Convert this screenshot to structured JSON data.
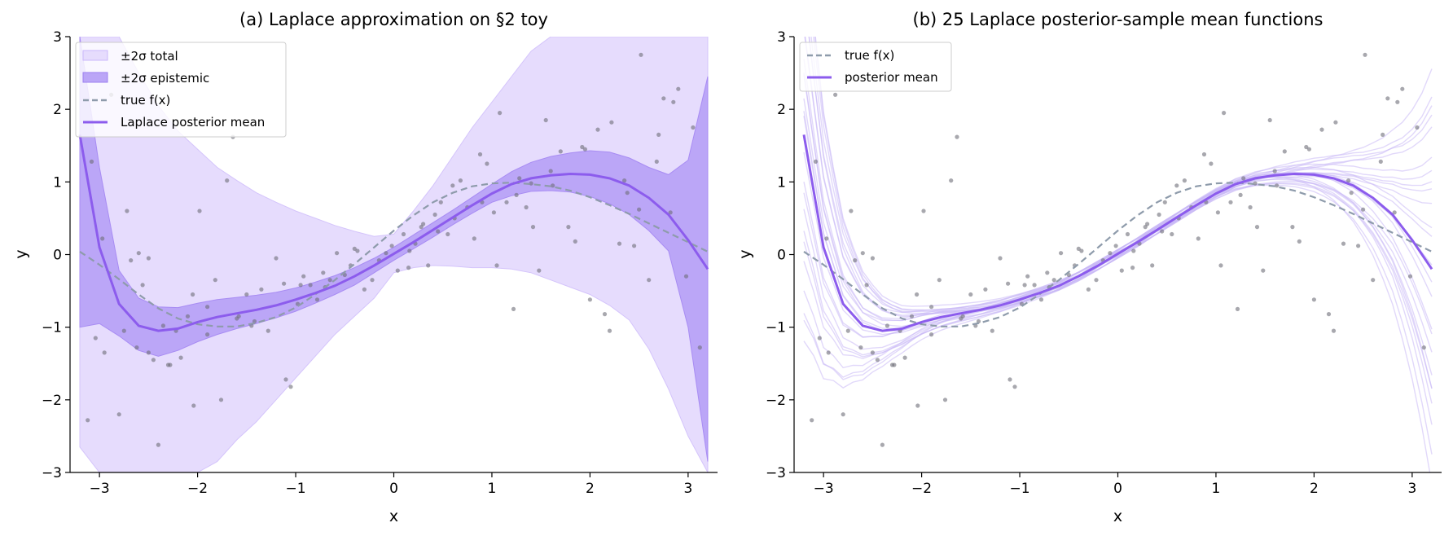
{
  "colors": {
    "mean": "#8c5ced",
    "band_total": "#e6dcfd",
    "band_epistemic": "#bba6f7",
    "true_curve": "#8e9bab",
    "points": "#6e6e78",
    "samples": "#c9b8f6"
  },
  "chart_data": [
    {
      "type": "line",
      "title": "(a) Laplace approximation on §2 toy",
      "xlabel": "x",
      "ylabel": "y",
      "xlim": [
        -3.3,
        3.3
      ],
      "ylim": [
        -3,
        3
      ],
      "xticks": [
        -3,
        -2,
        -1,
        0,
        1,
        2,
        3
      ],
      "yticks": [
        -3,
        -2,
        -1,
        0,
        1,
        2,
        3
      ],
      "xtick_labels": [
        "−3",
        "−2",
        "−1",
        "0",
        "1",
        "2",
        "3"
      ],
      "ytick_labels": [
        "−3",
        "−2",
        "−1",
        "0",
        "1",
        "2",
        "3"
      ],
      "grid": false,
      "legend_position": "top-left",
      "legend": [
        {
          "label": "±2σ total",
          "kind": "band",
          "color": "#e6dcfd"
        },
        {
          "label": "±2σ epistemic",
          "kind": "band",
          "color": "#bba6f7"
        },
        {
          "label": "true f(x)",
          "kind": "dash",
          "color": "#8e9bab"
        },
        {
          "label": "Laplace posterior mean",
          "kind": "line",
          "color": "#8c5ced"
        }
      ],
      "x": [
        -3.2,
        -3.0,
        -2.8,
        -2.6,
        -2.4,
        -2.2,
        -2.0,
        -1.8,
        -1.6,
        -1.4,
        -1.2,
        -1.0,
        -0.8,
        -0.6,
        -0.4,
        -0.2,
        0.0,
        0.2,
        0.4,
        0.6,
        0.8,
        1.0,
        1.2,
        1.4,
        1.6,
        1.8,
        2.0,
        2.2,
        2.4,
        2.6,
        2.8,
        3.0,
        3.2
      ],
      "series": [
        {
          "name": "Laplace posterior mean",
          "style": "line",
          "values": [
            1.65,
            0.1,
            -0.68,
            -0.98,
            -1.05,
            -1.02,
            -0.93,
            -0.86,
            -0.81,
            -0.76,
            -0.7,
            -0.62,
            -0.53,
            -0.43,
            -0.3,
            -0.15,
            0.01,
            0.17,
            0.34,
            0.51,
            0.68,
            0.84,
            0.97,
            1.05,
            1.09,
            1.11,
            1.1,
            1.05,
            0.95,
            0.78,
            0.55,
            0.2,
            -0.2
          ]
        },
        {
          "name": "true f(x)",
          "style": "dash",
          "values": [
            0.04,
            -0.14,
            -0.34,
            -0.55,
            -0.74,
            -0.88,
            -0.96,
            -0.99,
            -0.99,
            -0.94,
            -0.86,
            -0.73,
            -0.55,
            -0.35,
            -0.13,
            0.1,
            0.33,
            0.54,
            0.72,
            0.85,
            0.94,
            0.98,
            0.99,
            0.97,
            0.94,
            0.88,
            0.79,
            0.68,
            0.56,
            0.43,
            0.3,
            0.17,
            0.04
          ]
        },
        {
          "name": "±2σ epistemic",
          "style": "band",
          "lower": [
            -1.0,
            -0.95,
            -1.12,
            -1.32,
            -1.4,
            -1.32,
            -1.2,
            -1.1,
            -1.02,
            -0.95,
            -0.87,
            -0.78,
            -0.67,
            -0.55,
            -0.42,
            -0.25,
            -0.08,
            0.08,
            0.24,
            0.41,
            0.57,
            0.72,
            0.81,
            0.87,
            0.88,
            0.86,
            0.8,
            0.7,
            0.55,
            0.33,
            0.05,
            -1.0,
            -2.85
          ],
          "upper": [
            3.0,
            1.2,
            -0.22,
            -0.6,
            -0.72,
            -0.73,
            -0.67,
            -0.62,
            -0.59,
            -0.56,
            -0.52,
            -0.46,
            -0.38,
            -0.29,
            -0.18,
            -0.05,
            0.1,
            0.27,
            0.44,
            0.61,
            0.79,
            0.97,
            1.14,
            1.27,
            1.35,
            1.4,
            1.43,
            1.41,
            1.33,
            1.2,
            1.1,
            1.3,
            2.45
          ]
        },
        {
          "name": "±2σ total",
          "style": "band",
          "lower": [
            -2.65,
            -3.0,
            -3.0,
            -3.0,
            -3.0,
            -3.0,
            -3.0,
            -2.85,
            -2.55,
            -2.3,
            -2.0,
            -1.7,
            -1.4,
            -1.1,
            -0.85,
            -0.6,
            -0.25,
            -0.18,
            -0.15,
            -0.16,
            -0.18,
            -0.18,
            -0.2,
            -0.25,
            -0.35,
            -0.45,
            -0.55,
            -0.7,
            -0.9,
            -1.3,
            -1.85,
            -2.5,
            -3.0
          ],
          "upper": [
            3.0,
            3.0,
            3.0,
            2.5,
            2.05,
            1.7,
            1.45,
            1.2,
            1.02,
            0.85,
            0.72,
            0.6,
            0.5,
            0.4,
            0.32,
            0.25,
            0.28,
            0.6,
            0.95,
            1.35,
            1.75,
            2.1,
            2.45,
            2.8,
            3.0,
            3.0,
            3.0,
            3.0,
            3.0,
            3.0,
            3.0,
            3.0,
            3.0
          ]
        }
      ],
      "points_x": [
        -3.12,
        -3.04,
        -2.97,
        -2.88,
        -2.8,
        -2.75,
        -2.68,
        -2.62,
        -2.56,
        -2.5,
        -2.45,
        -2.4,
        -2.35,
        -2.28,
        -2.22,
        -2.17,
        -2.1,
        -2.04,
        -1.98,
        -1.9,
        -1.82,
        -1.76,
        -1.7,
        -1.64,
        -1.58,
        -1.5,
        -1.42,
        -1.35,
        -1.28,
        -1.2,
        -1.12,
        -1.05,
        -0.98,
        -0.92,
        -0.85,
        -0.78,
        -0.72,
        -0.65,
        -0.58,
        -0.5,
        -0.44,
        -0.37,
        -0.3,
        -0.22,
        -0.15,
        -0.08,
        -0.02,
        0.04,
        0.1,
        0.16,
        0.22,
        0.28,
        0.35,
        0.42,
        0.48,
        0.55,
        0.62,
        0.68,
        0.75,
        0.82,
        0.88,
        0.95,
        1.02,
        1.08,
        1.15,
        1.22,
        1.28,
        1.35,
        1.42,
        1.48,
        1.55,
        1.62,
        1.7,
        1.78,
        1.85,
        1.92,
        2.0,
        2.08,
        2.15,
        2.22,
        2.3,
        2.38,
        2.45,
        2.52,
        2.6,
        2.68,
        2.75,
        2.82,
        2.9,
        2.98,
        3.05,
        3.12,
        -2.95,
        -2.6,
        -2.3,
        -1.9,
        -1.45,
        -0.95,
        -0.4,
        0.3,
        0.9,
        1.4,
        1.95,
        2.5,
        2.85,
        -2.5,
        -1.1,
        0.6,
        1.25,
        2.35,
        -3.08,
        -2.72,
        -2.05,
        -1.6,
        -0.7,
        0.15,
        0.45,
        1.05,
        1.6,
        2.2,
        2.7
      ],
      "points_y": [
        -2.28,
        -1.15,
        0.22,
        2.2,
        -2.2,
        -1.05,
        -0.08,
        -1.28,
        -0.42,
        -1.35,
        -1.45,
        -2.62,
        -0.98,
        -1.52,
        -1.05,
        -1.42,
        -0.85,
        -2.08,
        0.6,
        -1.1,
        -0.35,
        -2.0,
        1.02,
        1.62,
        -0.85,
        -0.55,
        -0.92,
        -0.48,
        -1.05,
        -0.05,
        -0.4,
        -1.82,
        -0.68,
        -0.3,
        -0.42,
        -0.62,
        -0.25,
        -0.35,
        0.02,
        -0.28,
        -0.15,
        0.05,
        -0.48,
        -0.35,
        -0.08,
        0.02,
        0.12,
        -0.22,
        0.28,
        0.05,
        0.15,
        0.38,
        -0.15,
        0.55,
        0.72,
        0.28,
        0.5,
        1.02,
        0.65,
        0.22,
        1.38,
        1.25,
        0.58,
        1.95,
        0.72,
        -0.75,
        1.05,
        0.65,
        0.38,
        -0.22,
        1.85,
        0.95,
        1.42,
        0.38,
        0.18,
        1.48,
        -0.62,
        1.72,
        -0.82,
        1.82,
        0.15,
        0.85,
        0.12,
        2.75,
        -0.35,
        1.28,
        2.15,
        0.58,
        2.28,
        -0.3,
        1.75,
        -1.28,
        -1.35,
        0.02,
        -1.52,
        -0.72,
        -0.98,
        -0.42,
        0.08,
        0.42,
        0.72,
        0.98,
        1.45,
        0.62,
        2.1,
        -0.05,
        -1.72,
        0.95,
        0.82,
        1.02,
        1.28,
        0.6,
        -0.55,
        -0.88,
        -0.45,
        -0.18,
        0.32,
        -0.15,
        1.15,
        -1.05,
        1.65,
        -1.52
      ]
    },
    {
      "type": "line",
      "title": "(b) 25 Laplace posterior-sample mean functions",
      "xlabel": "x",
      "ylabel": "y",
      "xlim": [
        -3.3,
        3.3
      ],
      "ylim": [
        -3,
        3
      ],
      "xticks": [
        -3,
        -2,
        -1,
        0,
        1,
        2,
        3
      ],
      "yticks": [
        -3,
        -2,
        -1,
        0,
        1,
        2,
        3
      ],
      "xtick_labels": [
        "−3",
        "−2",
        "−1",
        "0",
        "1",
        "2",
        "3"
      ],
      "ytick_labels": [
        "−3",
        "−2",
        "−1",
        "0",
        "1",
        "2",
        "3"
      ],
      "grid": false,
      "legend_position": "top-left",
      "legend": [
        {
          "label": "true f(x)",
          "kind": "dash",
          "color": "#8e9bab"
        },
        {
          "label": "posterior mean",
          "kind": "line",
          "color": "#8c5ced"
        }
      ],
      "sample_count": 25,
      "sample_spread_left": [
        2.2,
        -1.8,
        0.8,
        -1.3,
        3.0,
        -0.6,
        1.5,
        -2.6,
        0.2,
        2.6,
        -1.0,
        1.1,
        -2.1,
        0.5,
        1.9,
        -0.3,
        -1.5,
        2.9,
        -2.4,
        0.9,
        -0.8,
        1.4,
        -2.9,
        0.3,
        2.0
      ],
      "sample_spread_right": [
        -1.6,
        1.2,
        0.4,
        -2.2,
        2.1,
        -0.8,
        1.6,
        -1.1,
        0.9,
        -2.6,
        1.9,
        -0.4,
        2.4,
        -1.4,
        0.1,
        1.1,
        -1.9,
        2.7,
        -0.2,
        0.6,
        -2.9,
        1.4,
        -0.9,
        2.2,
        -1.7
      ],
      "points_ref": "same scatter as panel (a)"
    }
  ]
}
